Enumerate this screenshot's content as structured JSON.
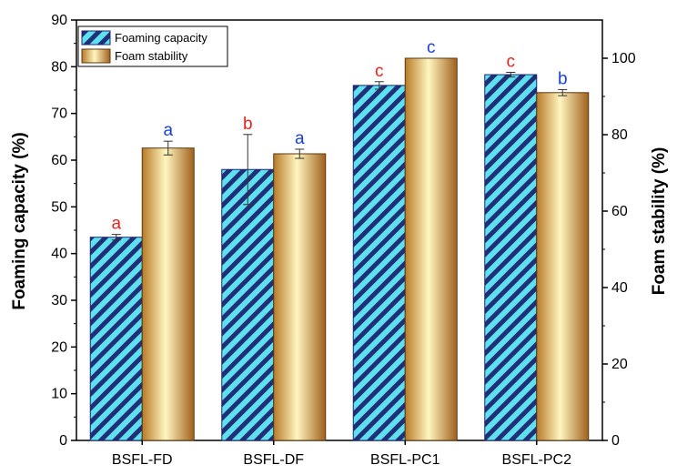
{
  "chart_data": {
    "type": "bar",
    "categories": [
      "BSFL-FD",
      "BSFL-DF",
      "BSFL-PC1",
      "BSFL-PC2"
    ],
    "series": [
      {
        "name": "Foaming capacity",
        "axis": "left",
        "values": [
          43.5,
          58.0,
          76.0,
          78.3
        ],
        "errors": [
          0.6,
          7.5,
          0.8,
          0.5
        ],
        "labels": [
          "a",
          "b",
          "c",
          "c"
        ],
        "label_color": "#e8231e",
        "fill": "#5fe0ee",
        "stripe": "#1f2f78",
        "edge": "#1c2670"
      },
      {
        "name": "Foam stability",
        "axis": "right",
        "values": [
          76.5,
          75.0,
          100.0,
          91.0
        ],
        "errors": [
          1.8,
          1.2,
          0.0,
          0.8
        ],
        "labels": [
          "a",
          "a",
          "c",
          "b"
        ],
        "label_color": "#1a3fd6",
        "fill_light": "#fff6c0",
        "fill_dark": "#a0601c",
        "edge": "#5a3a10"
      }
    ],
    "ylabel": "Foaming capacity (%)",
    "y2label": "Foam stability (%)",
    "ylim": [
      0,
      90
    ],
    "y2lim": [
      0,
      110
    ],
    "yticks": [
      0,
      10,
      20,
      30,
      40,
      50,
      60,
      70,
      80,
      90
    ],
    "y2ticks": [
      0,
      20,
      40,
      60,
      80,
      100
    ],
    "legend": {
      "position": "top-left",
      "entries": [
        "Foaming capacity",
        "Foam stability"
      ]
    }
  }
}
